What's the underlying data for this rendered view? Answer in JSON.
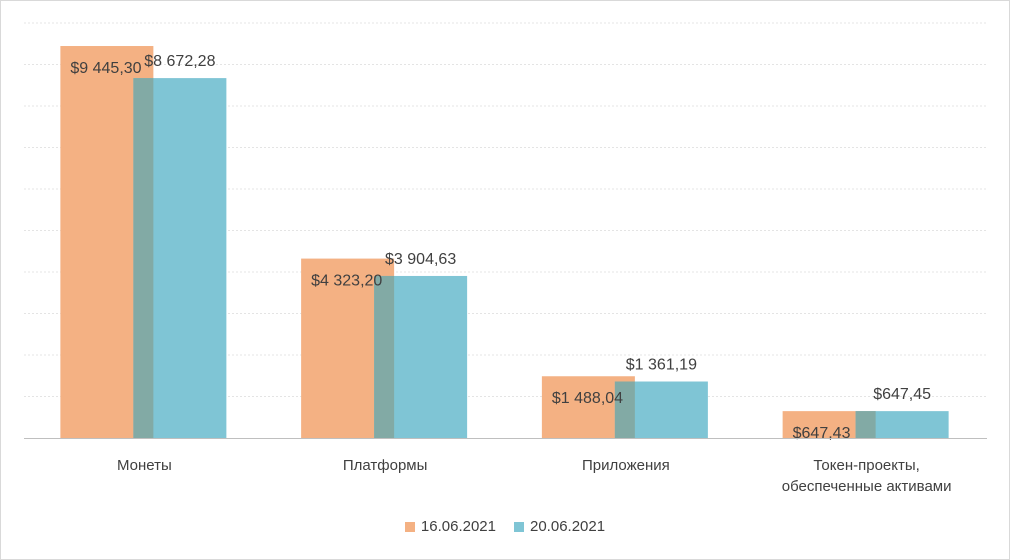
{
  "chart_data": {
    "type": "bar",
    "title": "",
    "xlabel": "",
    "ylabel": "",
    "ylim": [
      0,
      10000
    ],
    "grid": true,
    "legend_position": "bottom",
    "categories": [
      [
        "Монеты"
      ],
      [
        "Платформы"
      ],
      [
        "Приложения"
      ],
      [
        "Токен-проекты,",
        "обеспеченные  активами"
      ]
    ],
    "series": [
      {
        "name": "16.06.2021",
        "color": "#f4b183",
        "values": [
          9445.3,
          4323.2,
          1488.04,
          647.43
        ],
        "labels": [
          "$9 445,30",
          "$4 323,20",
          "$1 488,04",
          "$647,43"
        ]
      },
      {
        "name": "20.06.2021",
        "color": "#7fc5d5",
        "values": [
          8672.28,
          3904.63,
          1361.19,
          647.45
        ],
        "labels": [
          "$8 672,28",
          "$3 904,63",
          "$1 361,19",
          "$647,45"
        ]
      }
    ],
    "overlap_color": "#82aaa5"
  }
}
